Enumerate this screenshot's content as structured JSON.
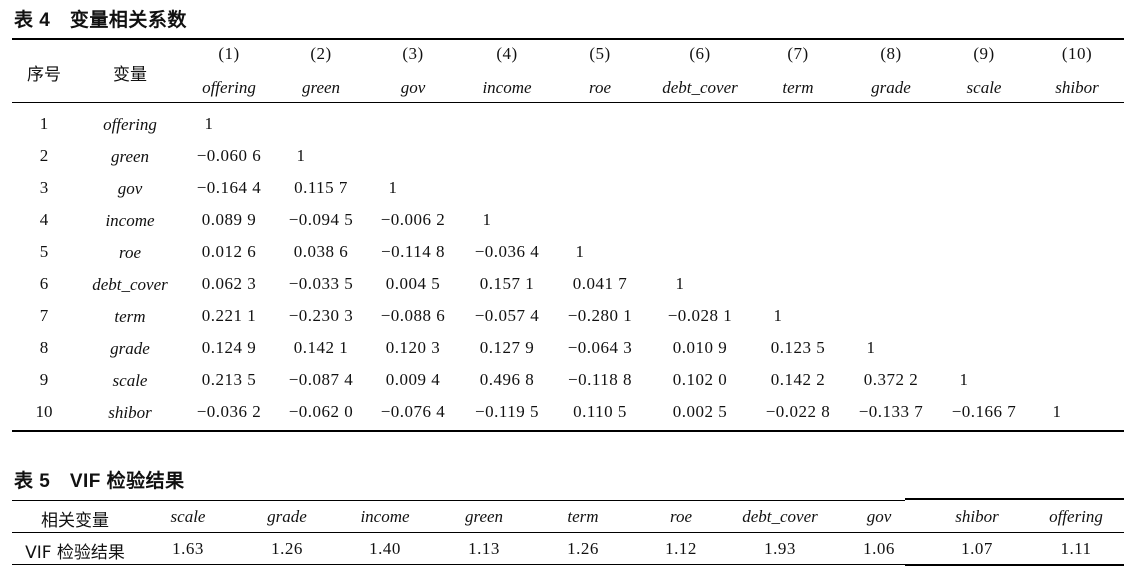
{
  "table4": {
    "caption": "表 4　变量相关系数",
    "head_index": "序号",
    "head_variable": "变量",
    "col_numbers": [
      "(1)",
      "(2)",
      "(3)",
      "(4)",
      "(5)",
      "(6)",
      "(7)",
      "(8)",
      "(9)",
      "(10)"
    ],
    "col_names": [
      "offering",
      "green",
      "gov",
      "income",
      "roe",
      "debt_cover",
      "term",
      "grade",
      "scale",
      "shibor"
    ],
    "rows": [
      {
        "idx": "1",
        "name": "offering",
        "vals": [
          "1"
        ]
      },
      {
        "idx": "2",
        "name": "green",
        "vals": [
          "−0.060 6",
          "1"
        ]
      },
      {
        "idx": "3",
        "name": "gov",
        "vals": [
          "−0.164 4",
          "0.115 7",
          "1"
        ]
      },
      {
        "idx": "4",
        "name": "income",
        "vals": [
          "0.089 9",
          "−0.094 5",
          "−0.006 2",
          "1"
        ]
      },
      {
        "idx": "5",
        "name": "roe",
        "vals": [
          "0.012 6",
          "0.038 6",
          "−0.114 8",
          "−0.036 4",
          "1"
        ]
      },
      {
        "idx": "6",
        "name": "debt_cover",
        "vals": [
          "0.062 3",
          "−0.033 5",
          "0.004 5",
          "0.157 1",
          "0.041 7",
          "1"
        ]
      },
      {
        "idx": "7",
        "name": "term",
        "vals": [
          "0.221 1",
          "−0.230 3",
          "−0.088 6",
          "−0.057 4",
          "−0.280 1",
          "−0.028 1",
          "1"
        ]
      },
      {
        "idx": "8",
        "name": "grade",
        "vals": [
          "0.124 9",
          "0.142 1",
          "0.120 3",
          "0.127 9",
          "−0.064 3",
          "0.010 9",
          "0.123 5",
          "1"
        ]
      },
      {
        "idx": "9",
        "name": "scale",
        "vals": [
          "0.213 5",
          "−0.087 4",
          "0.009 4",
          "0.496 8",
          "−0.118 8",
          "0.102 0",
          "0.142 2",
          "0.372 2",
          "1"
        ]
      },
      {
        "idx": "10",
        "name": "shibor",
        "vals": [
          "−0.036 2",
          "−0.062 0",
          "−0.076 4",
          "−0.119 5",
          "0.110 5",
          "0.002 5",
          "−0.022 8",
          "−0.133 7",
          "−0.166 7",
          "1"
        ]
      }
    ]
  },
  "table5": {
    "caption": "表 5　VIF 检验结果",
    "head_label": "相关变量",
    "row_label": "VIF 检验结果",
    "vars": [
      "scale",
      "grade",
      "income",
      "green",
      "term",
      "roe",
      "debt_cover",
      "gov",
      "shibor",
      "offering"
    ],
    "values": [
      "1.63",
      "1.26",
      "1.40",
      "1.13",
      "1.26",
      "1.12",
      "1.93",
      "1.06",
      "1.07",
      "1.11"
    ]
  }
}
